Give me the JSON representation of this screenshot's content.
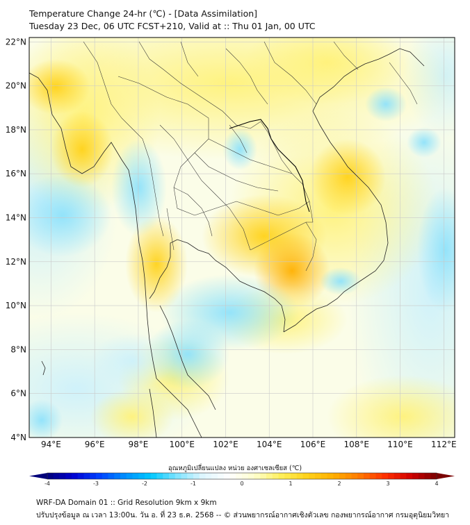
{
  "title_line1": "Temperature Change 24-hr (℃) - [Data Assimilation]",
  "title_line2": "Tuesday 23 Dec, 06 UTC FCST+210, Valid at :: Thu 01 Jan, 00 UTC",
  "lat_labels": [
    "22°N",
    "20°N",
    "18°N",
    "16°N",
    "14°N",
    "12°N",
    "10°N",
    "8°N",
    "6°N",
    "4°N"
  ],
  "lon_labels": [
    "94°E",
    "96°E",
    "98°E",
    "100°E",
    "102°E",
    "104°E",
    "106°E",
    "108°E",
    "110°E",
    "112°E"
  ],
  "colorbar": {
    "title": "อุณหภูมิเปลี่ยนแปลง หน่วย องศาเซลเซียส (℃)",
    "range": [
      -4,
      4
    ],
    "ticks": [
      "-4",
      "-3",
      "-2",
      "-1",
      "0",
      "1",
      "2",
      "3",
      "4"
    ],
    "colors": [
      "#00007a",
      "#0000d0",
      "#0040ff",
      "#0090ff",
      "#00c8ff",
      "#7fe3ff",
      "#dff6ff",
      "#ffffff",
      "#ffffcc",
      "#ffef5a",
      "#ffd21a",
      "#ffb000",
      "#ff7a00",
      "#ff3000",
      "#d00000",
      "#7a0000"
    ]
  },
  "footer_line1": "WRF-DA Domain 01 :: Grid Resolution 9km x 9km",
  "footer_line2": "ปรับปรุงข้อมูล ณ เวลา 13:00น. วัน อ. ที่ 23 ธ.ค. 2568 -- © ส่วนพยากรณ์อากาศเชิงตัวเลข กองพยากรณ์อากาศ กรมอุตุนิยมวิทยา"
}
